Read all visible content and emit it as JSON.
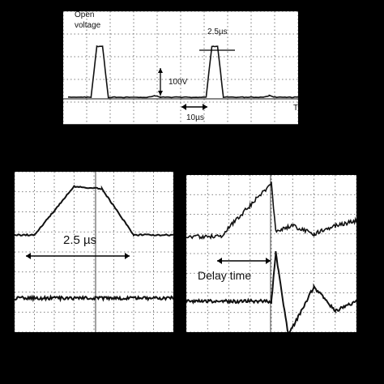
{
  "colors": {
    "background": "#000000",
    "screen": "#ffffff",
    "trace": "#111111",
    "grid": "#555555"
  },
  "top_scope": {
    "open_voltage_label": "Open\nvoltage",
    "pulse_width_label": "2.5µs",
    "voltage_scale_label": "100V",
    "time_scale_label": "10µs",
    "axis_end_label": "T"
  },
  "left_scope": {
    "width_label": "2.5 µs"
  },
  "right_scope": {
    "delay_label": "Delay time"
  },
  "chart_data": [
    {
      "type": "line",
      "title": "",
      "xlabel": "",
      "ylabel": "",
      "grid": true,
      "annotations": [
        "Open voltage",
        "2.5µs",
        "100V",
        "10µs"
      ],
      "series": [
        {
          "points": [
            [
              0,
              0
            ],
            [
              4,
              0
            ],
            [
              5,
              95
            ],
            [
              6,
              95
            ],
            [
              7,
              0
            ],
            [
              14,
              0
            ],
            [
              15,
              3
            ],
            [
              16,
              0
            ],
            [
              24,
              0
            ],
            [
              25,
              95
            ],
            [
              26,
              95
            ],
            [
              27,
              0
            ],
            [
              34,
              0
            ],
            [
              35,
              3
            ],
            [
              36,
              0
            ],
            [
              40,
              0
            ]
          ]
        }
      ]
    },
    {
      "type": "line",
      "title": "",
      "xlabel": "",
      "ylabel": "",
      "grid": true,
      "annotations": [
        "2.5 µs"
      ],
      "series": [
        {
          "points": [
            [
              0,
              0
            ],
            [
              0.5,
              0
            ],
            [
              1.5,
              1
            ],
            [
              2.2,
              0.95
            ],
            [
              3,
              0
            ],
            [
              4,
              0
            ]
          ]
        },
        {
          "points": [
            [
              0,
              0
            ],
            [
              4,
              0
            ]
          ]
        }
      ]
    },
    {
      "type": "line",
      "title": "",
      "xlabel": "",
      "ylabel": "",
      "grid": true,
      "annotations": [
        "Delay time"
      ],
      "series": [
        {
          "points": [
            [
              0,
              0
            ],
            [
              0.8,
              0
            ],
            [
              2,
              1
            ],
            [
              2.1,
              0.1
            ],
            [
              2.5,
              0.2
            ],
            [
              3,
              0.05
            ],
            [
              3.5,
              0.2
            ],
            [
              4,
              0.3
            ]
          ]
        },
        {
          "points": [
            [
              0,
              0
            ],
            [
              2,
              0
            ],
            [
              2.1,
              1
            ],
            [
              2.4,
              -0.7
            ],
            [
              3,
              0.3
            ],
            [
              3.5,
              -0.2
            ],
            [
              4,
              0
            ]
          ]
        }
      ]
    }
  ]
}
